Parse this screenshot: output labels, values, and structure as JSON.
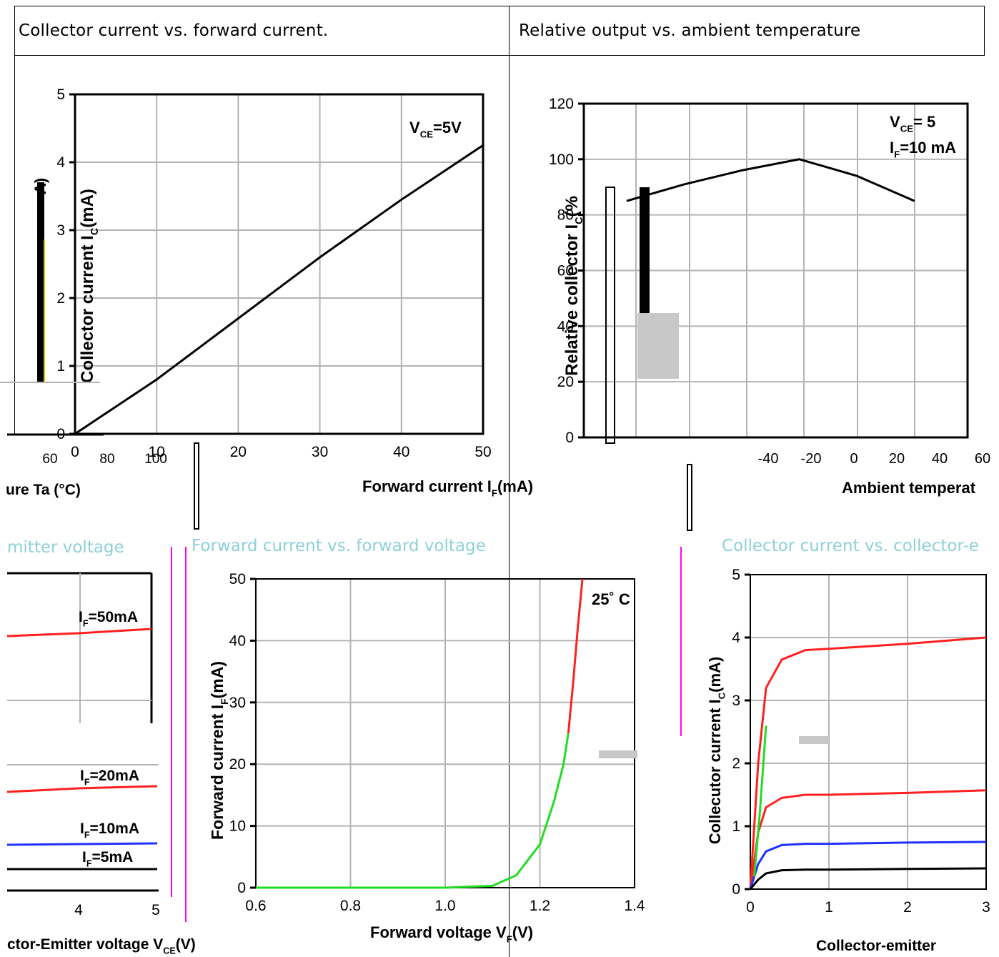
{
  "header": {
    "left_title": "Collector current vs. forward current.",
    "right_title": "Relative output vs. ambient temperature"
  },
  "sections": {
    "emitter_voltage_title": "mitter voltage",
    "forward_title": "Forward current vs. forward voltage",
    "collector_emitter_title": "Collector current vs. collector-e"
  },
  "colors": {
    "grid": "#b4b4b4",
    "axis": "#000000",
    "red": "#ff2020",
    "green": "#22dd22",
    "blue": "#2030ff",
    "magenta": "#ff00ff",
    "gray_block": "#c8c8c8"
  },
  "chart_data": [
    {
      "id": "ic_vs_if",
      "type": "line",
      "title": "Collector current vs. forward current.",
      "xlabel": "Forward current I",
      "xlabel_sub": "F",
      "xlabel_unit": "(mA)",
      "ylabel": "Collector current I",
      "ylabel_sub": "C",
      "ylabel_unit": "(mA)",
      "xlim": [
        0,
        50
      ],
      "ylim": [
        0,
        5
      ],
      "x_ticks": [
        "0",
        "10",
        "20",
        "30",
        "40",
        "50"
      ],
      "y_ticks": [
        "0",
        "1",
        "2",
        "3",
        "4",
        "5"
      ],
      "annotation": "V",
      "annotation_sub": "CE",
      "annotation_rest": "=5V",
      "grid": true,
      "series": [
        {
          "x": [
            0,
            5,
            10,
            20,
            30,
            40,
            50
          ],
          "y": [
            0,
            0.4,
            0.8,
            1.7,
            2.6,
            3.45,
            4.25
          ]
        }
      ]
    },
    {
      "id": "output_vs_temp",
      "type": "line",
      "title": "Relative output vs. ambient temperature",
      "xlabel": "Ambient temperat",
      "ylabel": "Relative collector I",
      "ylabel_sub": "C",
      "ylabel_unit": "(%",
      "ylim": [
        0,
        120
      ],
      "y_ticks": [
        "0",
        "20",
        "40",
        "60",
        "80",
        "100",
        "120"
      ],
      "x_ticks_visible": [
        "-40",
        "-20",
        "0",
        "20",
        "40",
        "60"
      ],
      "annotation_line1": "V",
      "annotation_line1_sub": "CE",
      "annotation_line1_rest": "= 5",
      "annotation_line2": "I",
      "annotation_line2_sub": "F",
      "annotation_line2_rest": "=10 mA",
      "grid": true,
      "series": [
        {
          "x": [
            -40,
            -20,
            0,
            20,
            40,
            60
          ],
          "y": [
            85,
            91,
            96,
            100,
            94,
            85
          ]
        }
      ]
    },
    {
      "id": "if_vs_vf",
      "type": "line",
      "title": "Forward current vs. forward voltage",
      "xlabel": "Forward voltage V",
      "xlabel_sub": "F",
      "xlabel_unit": "(V)",
      "ylabel": "Forward current I",
      "ylabel_sub": "F",
      "ylabel_unit": "(mA)",
      "xlim": [
        0.6,
        1.4
      ],
      "ylim": [
        0,
        50
      ],
      "x_ticks": [
        "0.6",
        "0.8",
        "1.0",
        "1.2",
        "1.4"
      ],
      "y_ticks": [
        "0",
        "10",
        "20",
        "30",
        "40",
        "50"
      ],
      "annotation": "25˚ C",
      "grid": true,
      "series": [
        {
          "color": "green",
          "x": [
            0.6,
            1.0,
            1.1,
            1.15,
            1.2,
            1.23,
            1.25,
            1.26
          ],
          "y": [
            0,
            0,
            0.3,
            2,
            7,
            14,
            20,
            25
          ]
        },
        {
          "color": "red",
          "x": [
            1.26,
            1.27,
            1.28,
            1.29
          ],
          "y": [
            25,
            33,
            42,
            50
          ]
        }
      ]
    },
    {
      "id": "ic_vs_vce_partial",
      "type": "line",
      "title": "mitter voltage",
      "xlabel": "ctor-Emitter voltage V",
      "xlabel_sub": "CE",
      "xlabel_unit": "(V)",
      "x_ticks_visible": [
        "4",
        "5"
      ],
      "labels": [
        "I_F=50mA",
        "I_F=20mA",
        "I_F=10mA",
        "I_F=5mA"
      ],
      "label_main": [
        "I",
        "I",
        "I",
        "I"
      ],
      "label_rest": [
        "=50mA",
        "=20mA",
        "=10mA",
        "=5mA"
      ],
      "label_sub": "F"
    },
    {
      "id": "ic_vs_vce",
      "type": "line",
      "title": "Collector current vs. collector-e",
      "ylabel": "Collecutor current I",
      "ylabel_sub": "C",
      "ylabel_unit": "(mA)",
      "xlabel_visible": "Collector-emitter",
      "xlim": [
        0,
        3
      ],
      "ylim": [
        0,
        5
      ],
      "x_ticks": [
        "0",
        "1",
        "2",
        "3"
      ],
      "y_ticks": [
        "0",
        "1",
        "2",
        "3",
        "4",
        "5"
      ],
      "grid": true,
      "series": [
        {
          "color": "red",
          "x": [
            0,
            0.1,
            0.2,
            0.4,
            0.7,
            1,
            2,
            3
          ],
          "y": [
            0,
            2.0,
            3.2,
            3.65,
            3.8,
            3.82,
            3.9,
            4.0
          ]
        },
        {
          "color": "red",
          "x": [
            0,
            0.1,
            0.2,
            0.4,
            0.7,
            1,
            2,
            3
          ],
          "y": [
            0,
            0.9,
            1.3,
            1.45,
            1.5,
            1.5,
            1.53,
            1.57
          ]
        },
        {
          "color": "blue",
          "x": [
            0,
            0.1,
            0.2,
            0.4,
            0.7,
            1,
            2,
            3
          ],
          "y": [
            0,
            0.4,
            0.6,
            0.7,
            0.72,
            0.72,
            0.74,
            0.75
          ]
        },
        {
          "color": "black",
          "x": [
            0,
            0.1,
            0.2,
            0.4,
            0.7,
            1,
            2,
            3
          ],
          "y": [
            0,
            0.15,
            0.25,
            0.3,
            0.31,
            0.31,
            0.32,
            0.33
          ]
        }
      ]
    }
  ],
  "stray_labels": {
    "temp_axis_left": "ure Ta (°C)",
    "left_ticks_a": "60",
    "left_ticks_b": "80",
    "left_ticks_c": "100",
    "fragment_a": "A)"
  }
}
